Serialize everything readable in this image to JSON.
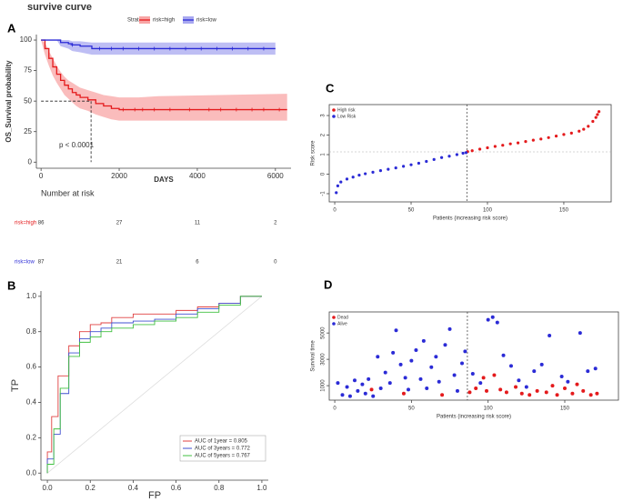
{
  "figure": {
    "title": "survive curve"
  },
  "chart_data": [
    {
      "type": "km",
      "panel": "A",
      "ylabel": "OS_Survival probability",
      "xlabel": "DAYS",
      "annotation": "p < 0.0001",
      "legend_title": "Strata",
      "xlim": [
        -120,
        6400
      ],
      "ylim": [
        -5,
        104.5
      ],
      "xticks": [
        0,
        2000,
        4000,
        6000
      ],
      "yticks": [
        0,
        25,
        50,
        75,
        100
      ],
      "median_x": 1280,
      "median_y": 50,
      "series": [
        {
          "name": "risk=high",
          "color": "#e41a1c",
          "band_color": "#f8a5a5",
          "x": [
            0,
            100,
            200,
            300,
            400,
            500,
            600,
            700,
            800,
            900,
            1000,
            1200,
            1400,
            1600,
            1800,
            2000,
            2500,
            3000,
            6300
          ],
          "values": [
            100,
            93,
            85,
            78,
            72,
            67,
            63,
            60,
            57,
            55,
            53,
            51,
            48,
            46,
            44,
            43,
            43,
            43,
            43
          ],
          "lower": [
            100,
            88,
            79,
            71,
            65,
            60,
            55,
            52,
            49,
            46,
            44,
            42,
            39,
            37,
            35,
            34,
            34,
            34,
            34
          ],
          "upper": [
            100,
            98,
            91,
            85,
            79,
            74,
            70,
            67,
            65,
            63,
            61,
            59,
            57,
            55,
            54,
            53,
            53,
            54,
            56
          ],
          "censor_x": [
            2100,
            2400,
            2600,
            2900,
            3300,
            3800,
            4300,
            4600,
            5000,
            5400,
            5700,
            6100
          ]
        },
        {
          "name": "risk=low",
          "color": "#2b2bd6",
          "band_color": "#a8a8f0",
          "x": [
            0,
            400,
            500,
            700,
            800,
            1000,
            1300,
            6000
          ],
          "values": [
            100,
            100,
            98,
            97,
            96,
            95,
            93,
            93
          ],
          "lower": [
            100,
            100,
            95,
            93,
            91,
            90,
            88,
            88
          ],
          "upper": [
            100,
            100,
            100,
            100,
            99,
            99,
            98,
            98
          ],
          "censor_x": [
            800,
            1500,
            1800,
            2100,
            2500,
            2900,
            3300,
            3700,
            4100,
            4500,
            4900,
            5300,
            5700
          ]
        }
      ],
      "risk_table": {
        "title": "Number at risk",
        "x": [
          0,
          2000,
          4000,
          6000
        ],
        "rows": [
          [
            86,
            27,
            11,
            2
          ],
          [
            87,
            21,
            6,
            0
          ]
        ]
      }
    },
    {
      "type": "roc",
      "panel": "B",
      "xlabel": "FP",
      "ylabel": "TP",
      "xlim": [
        -0.03,
        1.03
      ],
      "ylim": [
        -0.04,
        1.03
      ],
      "xticks": [
        {
          "value": 0,
          "label": "0.0"
        },
        0.2,
        0.4,
        0.6,
        0.8,
        {
          "value": 1,
          "label": "1.0"
        }
      ],
      "yticks": [
        {
          "value": 0,
          "label": "0.0"
        },
        0.2,
        0.4,
        0.6,
        0.8,
        {
          "value": 1,
          "label": "1.0"
        }
      ],
      "series": [
        {
          "name": "AUC of 1year = 0.805",
          "color": "#e04040",
          "x": [
            0,
            0.02,
            0.05,
            0.1,
            0.15,
            0.2,
            0.25,
            0.3,
            0.4,
            0.5,
            0.6,
            0.7,
            0.8,
            0.9,
            1
          ],
          "values": [
            0,
            0.12,
            0.32,
            0.55,
            0.72,
            0.8,
            0.84,
            0.85,
            0.88,
            0.9,
            0.9,
            0.92,
            0.94,
            0.96,
            1
          ]
        },
        {
          "name": "AUC of 3years = 0.772",
          "color": "#4050d0",
          "x": [
            0,
            0.03,
            0.06,
            0.1,
            0.15,
            0.2,
            0.25,
            0.3,
            0.4,
            0.5,
            0.6,
            0.7,
            0.8,
            0.9,
            1
          ],
          "values": [
            0,
            0.08,
            0.22,
            0.45,
            0.68,
            0.76,
            0.8,
            0.82,
            0.85,
            0.86,
            0.87,
            0.9,
            0.93,
            0.96,
            1
          ]
        },
        {
          "name": "AUC of 5years = 0.767",
          "color": "#40c040",
          "x": [
            0,
            0.03,
            0.06,
            0.1,
            0.15,
            0.2,
            0.25,
            0.3,
            0.4,
            0.5,
            0.6,
            0.7,
            0.8,
            0.9,
            1
          ],
          "values": [
            0,
            0.05,
            0.25,
            0.48,
            0.66,
            0.74,
            0.77,
            0.8,
            0.82,
            0.84,
            0.86,
            0.88,
            0.91,
            0.95,
            1
          ]
        }
      ]
    },
    {
      "type": "scatter",
      "panel": "C",
      "xlabel": "Patients (increasing risk score)",
      "ylabel": "Risk score",
      "xlim": [
        -3.6,
        181
      ],
      "ylim": [
        -1.42,
        3.56
      ],
      "xticks": [
        0,
        50,
        100,
        150
      ],
      "yticks": [
        -1,
        0,
        1,
        2,
        3
      ],
      "cutoff_x": 86.5,
      "cutoff_y": 1.14,
      "series": [
        {
          "name": "High risk",
          "color": "#e41a1c",
          "x": [
            87,
            90,
            95,
            100,
            105,
            110,
            115,
            120,
            125,
            130,
            135,
            140,
            145,
            150,
            155,
            160,
            163,
            166,
            169,
            171,
            172,
            173
          ],
          "values": [
            1.15,
            1.2,
            1.28,
            1.35,
            1.42,
            1.48,
            1.55,
            1.6,
            1.67,
            1.74,
            1.8,
            1.87,
            1.95,
            2.03,
            2.1,
            2.2,
            2.3,
            2.45,
            2.7,
            2.9,
            3.05,
            3.2
          ]
        },
        {
          "name": "Low Risk",
          "color": "#2b2bd6",
          "x": [
            1,
            2,
            4,
            8,
            12,
            16,
            20,
            25,
            30,
            35,
            40,
            45,
            50,
            55,
            60,
            65,
            70,
            75,
            80,
            84,
            86
          ],
          "values": [
            -0.95,
            -0.6,
            -0.4,
            -0.25,
            -0.15,
            -0.05,
            0.02,
            0.1,
            0.18,
            0.25,
            0.32,
            0.4,
            0.48,
            0.56,
            0.65,
            0.75,
            0.85,
            0.92,
            1.0,
            1.07,
            1.1
          ]
        }
      ]
    },
    {
      "type": "scatter",
      "panel": "D",
      "xlabel": "Patients (increasing risk score)",
      "ylabel": "Survival time",
      "xlim": [
        -3.6,
        185
      ],
      "ylim": [
        -100,
        6600
      ],
      "xticks": [
        0,
        50,
        100,
        150
      ],
      "yticks": [
        1000,
        3000,
        5000
      ],
      "cutoff_x": 86.5,
      "series": [
        {
          "name": "Dead",
          "color": "#e41a1c",
          "x": [
            24,
            45,
            70,
            88,
            92,
            97,
            99,
            104,
            108,
            112,
            118,
            122,
            127,
            132,
            138,
            142,
            145,
            150,
            155,
            158,
            162,
            167,
            171
          ],
          "values": [
            700,
            400,
            300,
            500,
            800,
            1600,
            600,
            1800,
            700,
            500,
            900,
            400,
            300,
            600,
            500,
            1000,
            300,
            800,
            400,
            1100,
            600,
            300,
            400
          ]
        },
        {
          "name": "Alive",
          "color": "#2b2bd6",
          "x": [
            2,
            5,
            8,
            10,
            13,
            15,
            18,
            20,
            22,
            25,
            28,
            30,
            33,
            36,
            38,
            40,
            43,
            46,
            48,
            50,
            53,
            56,
            58,
            60,
            63,
            66,
            68,
            72,
            75,
            78,
            80,
            83,
            85,
            90,
            95,
            100,
            103,
            106,
            110,
            115,
            120,
            125,
            130,
            135,
            140,
            148,
            152,
            160,
            165,
            170
          ],
          "values": [
            1200,
            300,
            900,
            200,
            1400,
            600,
            1100,
            400,
            1500,
            200,
            3200,
            800,
            2000,
            1200,
            3500,
            5200,
            2600,
            1600,
            700,
            2900,
            3700,
            1500,
            4400,
            800,
            2400,
            3200,
            1300,
            4100,
            5300,
            1800,
            600,
            2700,
            3600,
            1900,
            1200,
            6000,
            6200,
            5800,
            3300,
            2500,
            1400,
            900,
            2100,
            2600,
            4800,
            1700,
            1300,
            5000,
            2100,
            2300
          ]
        }
      ]
    }
  ]
}
